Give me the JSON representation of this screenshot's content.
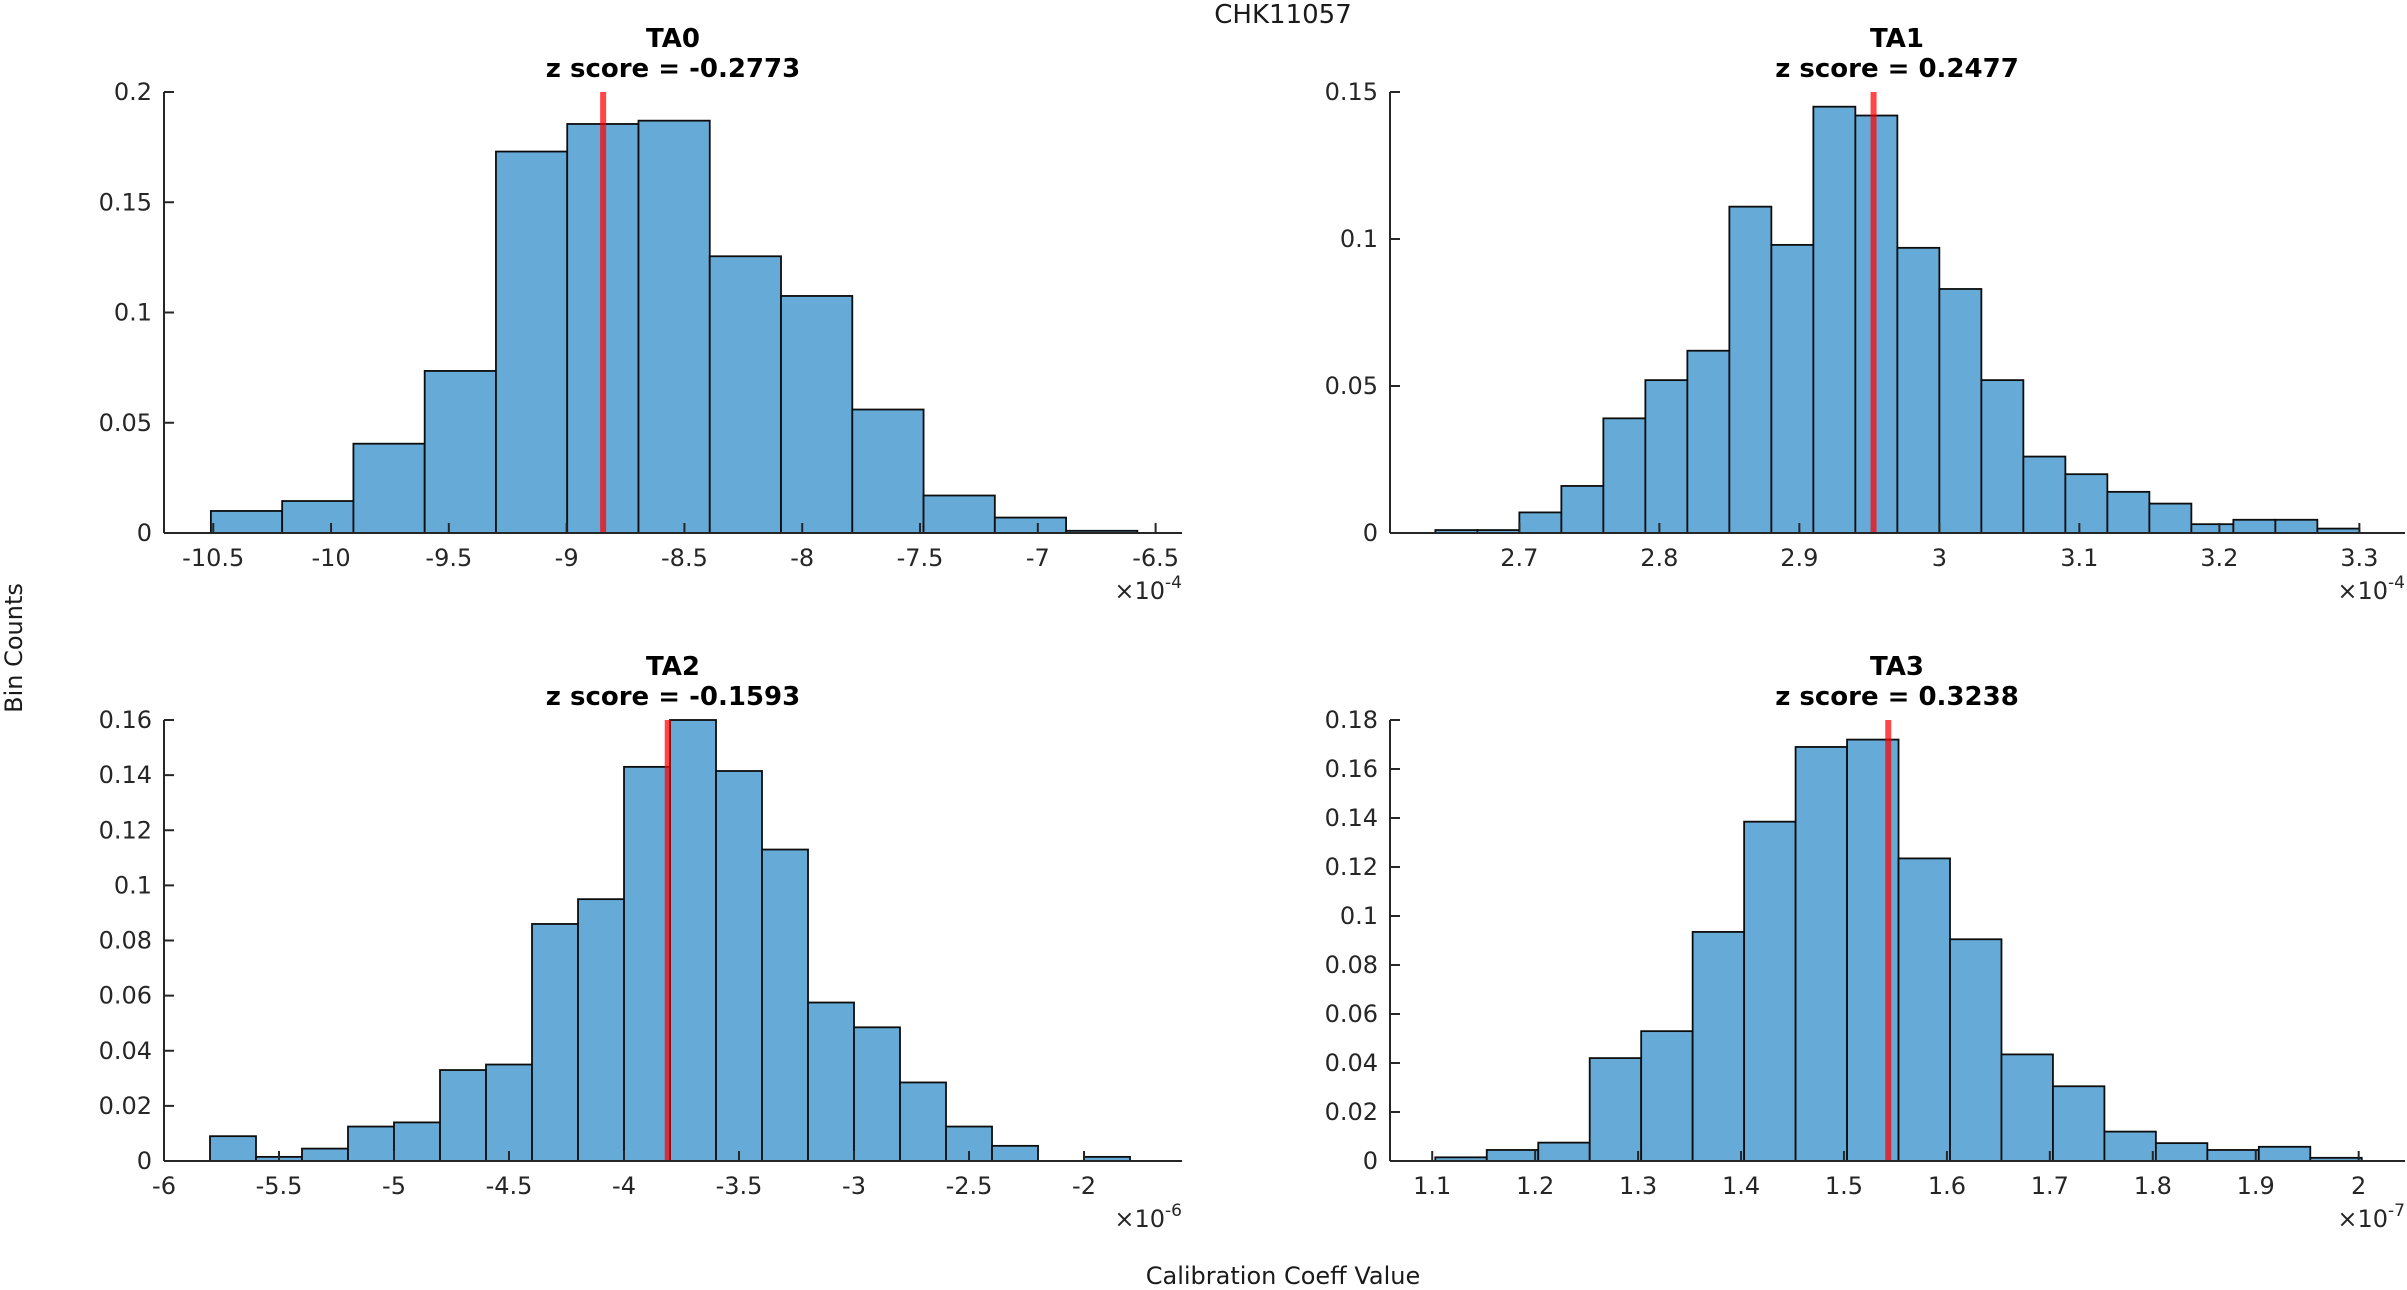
{
  "figure": {
    "title": "CHK11057",
    "xlabel": "Calibration Coeff Value",
    "ylabel": "Bin Counts",
    "background": "#FFFFFF",
    "bar_fill": "#66AAD7",
    "bar_edge": "#0D0D0D",
    "axis_color": "#262626",
    "red_line_color": "#FF0000",
    "red_line_opacity": 0.72,
    "grid": false,
    "legend": false
  },
  "chart_data": [
    {
      "type": "histogram",
      "panel": "top-left",
      "title": "TA0",
      "subtitle": "z score = -0.2773",
      "z_score": -0.2773,
      "x_unit_exponent": "-4",
      "x_unit_label": "×10^-4",
      "bin_start": -10.51,
      "bin_width": 0.3025,
      "values": [
        0.01,
        0.0145,
        0.0405,
        0.0735,
        0.173,
        0.1855,
        0.187,
        0.1255,
        0.1075,
        0.056,
        0.017,
        0.007,
        0.001
      ],
      "red_line_x": -8.845,
      "xlim": [
        -10.709,
        -6.388
      ],
      "ylim": [
        0,
        0.2
      ],
      "xtick_values": [
        -10.5,
        -10,
        -9.5,
        -9,
        -8.5,
        -8,
        -7.5,
        -7,
        -6.5
      ],
      "xtick_labels": [
        "-10.5",
        "-10",
        "-9.5",
        "-9",
        "-8.5",
        "-8",
        "-7.5",
        "-7",
        "-6.5"
      ],
      "ytick_values": [
        0,
        0.05,
        0.1,
        0.15,
        0.2
      ],
      "ytick_labels": [
        "0",
        "0.05",
        "0.1",
        "0.15",
        "0.2"
      ]
    },
    {
      "type": "histogram",
      "panel": "top-right",
      "title": "TA1",
      "subtitle": "z score = 0.2477",
      "z_score": 0.2477,
      "x_unit_exponent": "-4",
      "x_unit_label": "×10^-4",
      "bin_start": 2.64,
      "bin_width": 0.03,
      "values": [
        0.001,
        0.001,
        0.007,
        0.016,
        0.039,
        0.052,
        0.062,
        0.111,
        0.098,
        0.145,
        0.142,
        0.097,
        0.083,
        0.052,
        0.026,
        0.02,
        0.014,
        0.01,
        0.003,
        0.0045,
        0.0045,
        0.0015
      ],
      "red_line_x": 2.953,
      "xlim": [
        2.6076,
        3.3326
      ],
      "ylim": [
        0,
        0.15
      ],
      "xtick_values": [
        2.7,
        2.8,
        2.9,
        3,
        3.1,
        3.2,
        3.3
      ],
      "xtick_labels": [
        "2.7",
        "2.8",
        "2.9",
        "3",
        "3.1",
        "3.2",
        "3.3"
      ],
      "ytick_values": [
        0,
        0.05,
        0.1,
        0.15
      ],
      "ytick_labels": [
        "0",
        "0.05",
        "0.1",
        "0.15"
      ]
    },
    {
      "type": "histogram",
      "panel": "bottom-left",
      "title": "TA2",
      "subtitle": "z score = -0.1593",
      "z_score": -0.1593,
      "x_unit_exponent": "-6",
      "x_unit_label": "×10^-6",
      "bin_start": -5.8,
      "bin_width": 0.2,
      "values": [
        0.009,
        0.0015,
        0.0045,
        0.0125,
        0.014,
        0.033,
        0.035,
        0.086,
        0.095,
        0.143,
        0.16,
        0.1415,
        0.113,
        0.0575,
        0.0485,
        0.0285,
        0.0125,
        0.0055,
        0,
        0.0015
      ],
      "red_line_x": -3.81,
      "xlim": [
        -6.0,
        -1.574
      ],
      "ylim": [
        0,
        0.16
      ],
      "xtick_values": [
        -6,
        -5.5,
        -5,
        -4.5,
        -4,
        -3.5,
        -3,
        -2.5,
        -2
      ],
      "xtick_labels": [
        "-6",
        "-5.5",
        "-5",
        "-4.5",
        "-4",
        "-3.5",
        "-3",
        "-2.5",
        "-2"
      ],
      "ytick_values": [
        0,
        0.02,
        0.04,
        0.06,
        0.08,
        0.1,
        0.12,
        0.14,
        0.16
      ],
      "ytick_labels": [
        "0",
        "0.02",
        "0.04",
        "0.06",
        "0.08",
        "0.1",
        "0.12",
        "0.14",
        "0.16"
      ]
    },
    {
      "type": "histogram",
      "panel": "bottom-right",
      "title": "TA3",
      "subtitle": "z score = 0.3238",
      "z_score": 0.3238,
      "x_unit_exponent": "-7",
      "x_unit_label": "×10^-7",
      "bin_start": 1.103,
      "bin_width": 0.05,
      "values": [
        0.0015,
        0.0045,
        0.0075,
        0.042,
        0.053,
        0.0935,
        0.1385,
        0.169,
        0.172,
        0.1235,
        0.0905,
        0.0435,
        0.0305,
        0.012,
        0.0073,
        0.0045,
        0.0058,
        0.0013
      ],
      "red_line_x": 1.543,
      "xlim": [
        1.059,
        2.045
      ],
      "ylim": [
        0,
        0.18
      ],
      "xtick_values": [
        1.1,
        1.2,
        1.3,
        1.4,
        1.5,
        1.6,
        1.7,
        1.8,
        1.9,
        2
      ],
      "xtick_labels": [
        "1.1",
        "1.2",
        "1.3",
        "1.4",
        "1.5",
        "1.6",
        "1.7",
        "1.8",
        "1.9",
        "2"
      ],
      "ytick_values": [
        0,
        0.02,
        0.04,
        0.06,
        0.08,
        0.1,
        0.12,
        0.14,
        0.16,
        0.18
      ],
      "ytick_labels": [
        "0",
        "0.02",
        "0.04",
        "0.06",
        "0.08",
        "0.1",
        "0.12",
        "0.14",
        "0.16",
        "0.18"
      ]
    }
  ]
}
